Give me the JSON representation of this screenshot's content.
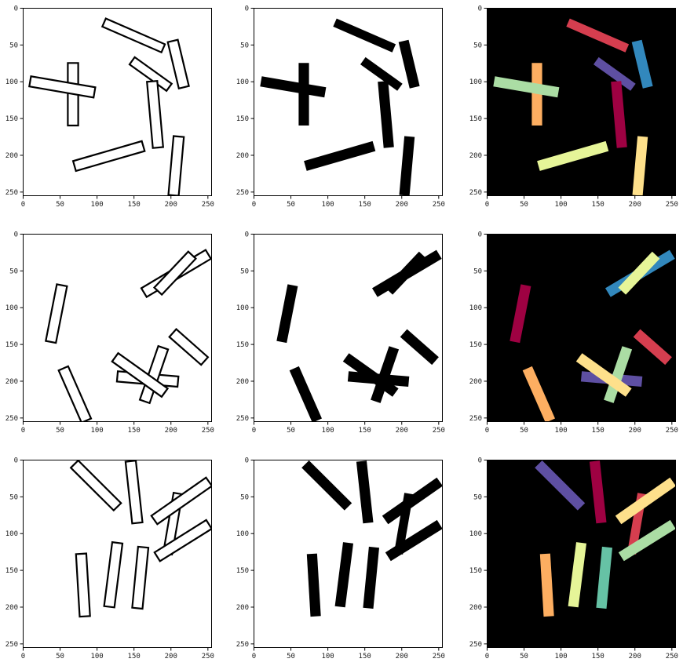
{
  "figure": {
    "rows": 3,
    "cols": 3,
    "axis_ticks": [
      0,
      50,
      100,
      150,
      200,
      250
    ],
    "panel_types": [
      "outline",
      "filled",
      "labels"
    ],
    "colors": {
      "background_light": "#ffffff",
      "background_dark": "#000000",
      "outline_stroke": "#000000",
      "filled_fill": "#000000"
    },
    "palette": [
      "#9e0142",
      "#d53e4f",
      "#f46d43",
      "#fdae61",
      "#fee08b",
      "#e6f598",
      "#abdda4",
      "#66c2a5",
      "#3288bd",
      "#5e4fa2"
    ]
  },
  "chart_data": [
    {
      "type": "image-grid-row",
      "row": 1,
      "xlim": [
        0,
        255
      ],
      "ylim": [
        255,
        0
      ],
      "grid": false,
      "description_units": "pixel coordinates of a 256x256 image",
      "rectangles": [
        {
          "p1": [
            110,
            20
          ],
          "p2": [
            190,
            55
          ],
          "width": 12,
          "color": "#d53e4f"
        },
        {
          "p1": [
            203,
            45
          ],
          "p2": [
            218,
            108
          ],
          "width": 14,
          "color": "#3288bd"
        },
        {
          "p1": [
            148,
            72
          ],
          "p2": [
            198,
            108
          ],
          "width": 12,
          "color": "#5e4fa2"
        },
        {
          "p1": [
            68,
            75
          ],
          "p2": [
            68,
            160
          ],
          "width": 14,
          "color": "#fdae61"
        },
        {
          "p1": [
            10,
            100
          ],
          "p2": [
            97,
            115
          ],
          "width": 14,
          "color": "#abdda4"
        },
        {
          "p1": [
            175,
            100
          ],
          "p2": [
            183,
            190
          ],
          "width": 14,
          "color": "#9e0142"
        },
        {
          "p1": [
            70,
            215
          ],
          "p2": [
            163,
            188
          ],
          "width": 14,
          "color": "#e6f598"
        },
        {
          "p1": [
            211,
            175
          ],
          "p2": [
            204,
            255
          ],
          "width": 14,
          "color": "#fee08b"
        }
      ]
    },
    {
      "type": "image-grid-row",
      "row": 2,
      "xlim": [
        0,
        255
      ],
      "ylim": [
        255,
        0
      ],
      "grid": false,
      "description_units": "pixel coordinates of a 256x256 image",
      "rectangles": [
        {
          "p1": [
            53,
            70
          ],
          "p2": [
            38,
            147
          ],
          "width": 14,
          "color": "#9e0142"
        },
        {
          "p1": [
            55,
            183
          ],
          "p2": [
            86,
            254
          ],
          "width": 14,
          "color": "#fdae61"
        },
        {
          "p1": [
            164,
            80
          ],
          "p2": [
            251,
            28
          ],
          "width": 14,
          "color": "#3288bd"
        },
        {
          "p1": [
            183,
            78
          ],
          "p2": [
            229,
            29
          ],
          "width": 14,
          "color": "#e6f598"
        },
        {
          "p1": [
            203,
            135
          ],
          "p2": [
            246,
            173
          ],
          "width": 14,
          "color": "#d53e4f"
        },
        {
          "p1": [
            128,
            194
          ],
          "p2": [
            210,
            201
          ],
          "width": 14,
          "color": "#5e4fa2"
        },
        {
          "p1": [
            190,
            155
          ],
          "p2": [
            165,
            228
          ],
          "width": 14,
          "color": "#abdda4"
        },
        {
          "p1": [
            125,
            168
          ],
          "p2": [
            192,
            216
          ],
          "width": 14,
          "color": "#fee08b"
        }
      ]
    },
    {
      "type": "image-grid-row",
      "row": 3,
      "xlim": [
        0,
        255
      ],
      "ylim": [
        255,
        0
      ],
      "grid": false,
      "description_units": "pixel coordinates of a 256x256 image",
      "rectangles": [
        {
          "p1": [
            70,
            6
          ],
          "p2": [
            128,
            64
          ],
          "width": 14,
          "color": "#5e4fa2"
        },
        {
          "p1": [
            146,
            2
          ],
          "p2": [
            155,
            86
          ],
          "width": 14,
          "color": "#9e0142"
        },
        {
          "p1": [
            210,
            46
          ],
          "p2": [
            196,
            128
          ],
          "width": 12,
          "color": "#d53e4f"
        },
        {
          "p1": [
            178,
            82
          ],
          "p2": [
            252,
            30
          ],
          "width": 14,
          "color": "#fee08b"
        },
        {
          "p1": [
            182,
            132
          ],
          "p2": [
            252,
            88
          ],
          "width": 14,
          "color": "#abdda4"
        },
        {
          "p1": [
            79,
            128
          ],
          "p2": [
            84,
            213
          ],
          "width": 14,
          "color": "#fdae61"
        },
        {
          "p1": [
            128,
            113
          ],
          "p2": [
            117,
            200
          ],
          "width": 14,
          "color": "#e6f598"
        },
        {
          "p1": [
            163,
            119
          ],
          "p2": [
            155,
            202
          ],
          "width": 14,
          "color": "#66c2a5"
        }
      ]
    }
  ]
}
